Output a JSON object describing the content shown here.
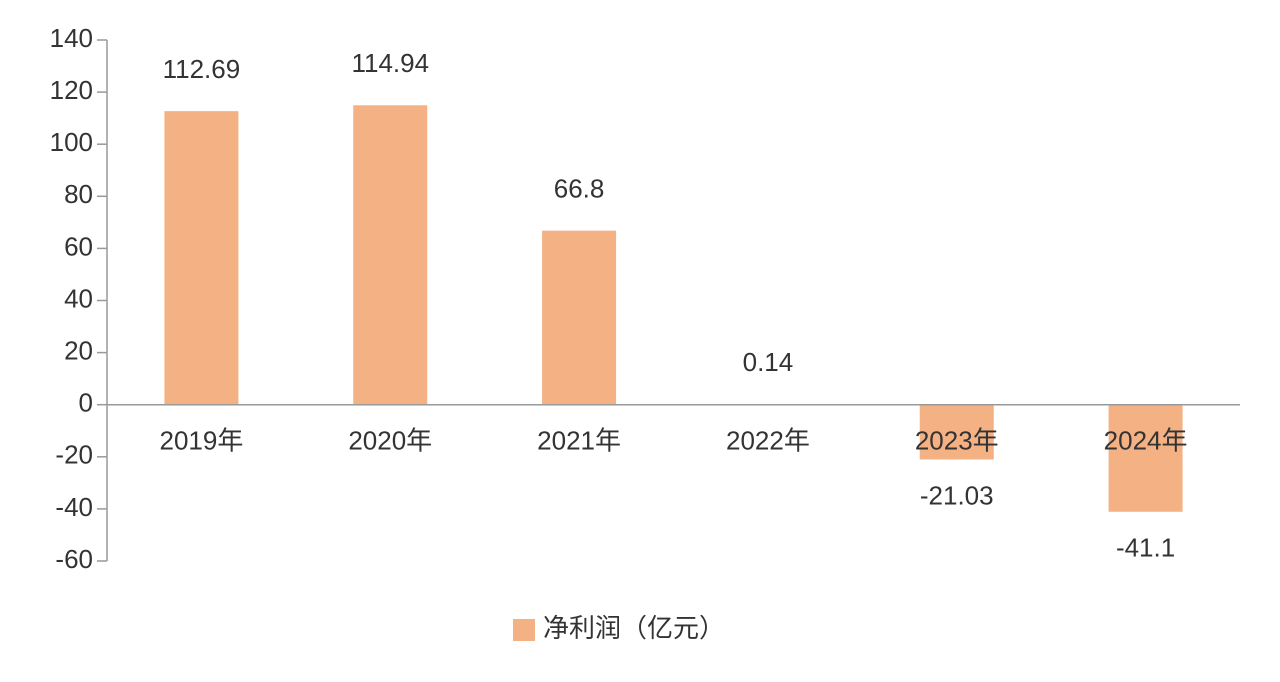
{
  "chart_data": {
    "type": "bar",
    "categories": [
      "2019年",
      "2020年",
      "2021年",
      "2022年",
      "2023年",
      "2024年"
    ],
    "series": [
      {
        "name": "净利润（亿元）",
        "color": "#f4b183",
        "values": [
          112.69,
          114.94,
          66.8,
          0.14,
          -21.03,
          -41.1
        ]
      }
    ],
    "ylim": [
      -60,
      140
    ],
    "yticks": [
      -60,
      -40,
      -20,
      0,
      20,
      40,
      60,
      80,
      100,
      120,
      140
    ],
    "legend": "bottom"
  }
}
